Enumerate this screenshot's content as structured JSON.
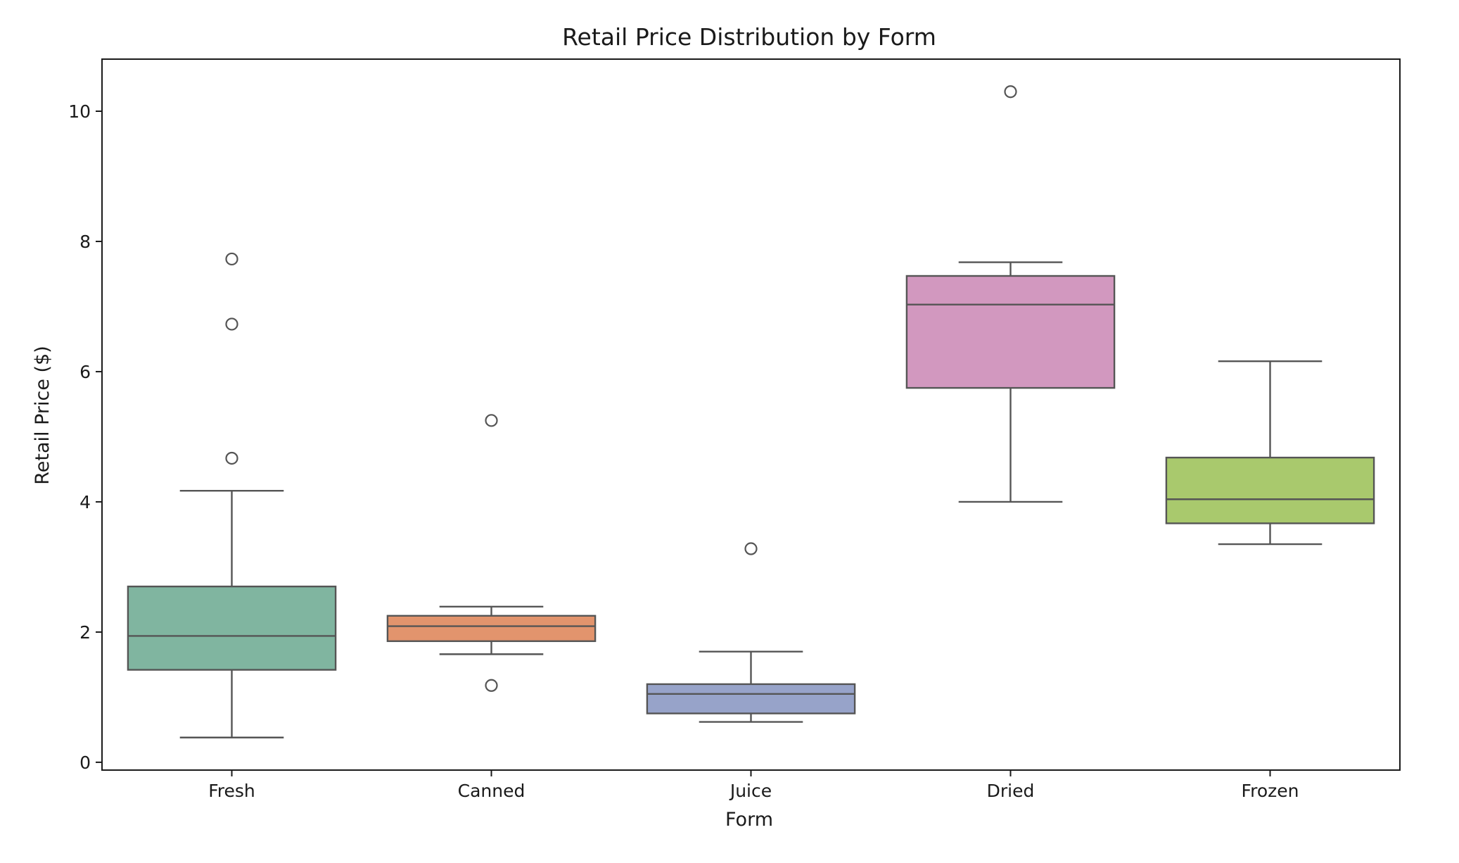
{
  "chart_data": {
    "type": "box",
    "title": "Retail Price Distribution by Form",
    "xlabel": "Form",
    "ylabel": "Retail Price ($)",
    "ylim": [
      -0.12,
      10.8
    ],
    "yticks": [
      0,
      2,
      4,
      6,
      8,
      10
    ],
    "grid": false,
    "legend": "none",
    "categories": [
      "Fresh",
      "Canned",
      "Juice",
      "Dried",
      "Frozen"
    ],
    "boxes": [
      {
        "name": "Fresh",
        "whisker_low": 0.38,
        "q1": 1.42,
        "median": 1.94,
        "q3": 2.7,
        "whisker_high": 4.17,
        "outliers": [
          4.67,
          6.73,
          7.73
        ],
        "color": "#80b5a0"
      },
      {
        "name": "Canned",
        "whisker_low": 1.66,
        "q1": 1.86,
        "median": 2.09,
        "q3": 2.25,
        "whisker_high": 2.39,
        "outliers": [
          1.18,
          5.25
        ],
        "color": "#e2946d"
      },
      {
        "name": "Juice",
        "whisker_low": 0.62,
        "q1": 0.75,
        "median": 1.05,
        "q3": 1.2,
        "whisker_high": 1.7,
        "outliers": [
          3.28
        ],
        "color": "#97a3c9"
      },
      {
        "name": "Dried",
        "whisker_low": 4.0,
        "q1": 5.75,
        "median": 7.03,
        "q3": 7.47,
        "whisker_high": 7.68,
        "outliers": [
          10.3
        ],
        "color": "#d298bf"
      },
      {
        "name": "Frozen",
        "whisker_low": 3.35,
        "q1": 3.67,
        "median": 4.04,
        "q3": 4.68,
        "whisker_high": 6.16,
        "outliers": [],
        "color": "#a9c96d"
      }
    ]
  }
}
